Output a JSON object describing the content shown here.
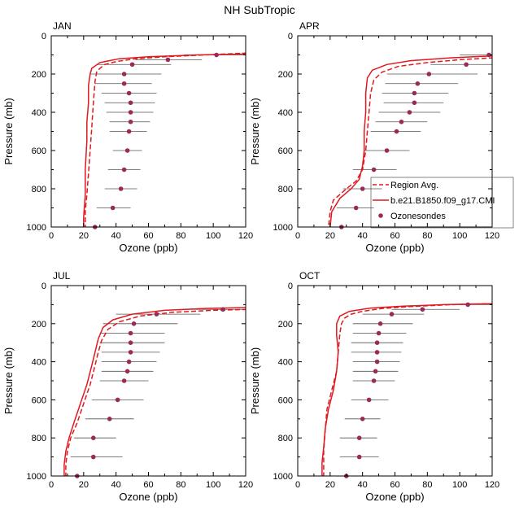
{
  "figure": {
    "title": "NH SubTropic"
  },
  "legend": {
    "region_avg": "Region Avg.",
    "model": "b.e21.B1850.f09_g17.CMI",
    "sondes": "Ozonesondes"
  },
  "colors": {
    "model": "#e0191f",
    "sondes": "#9a2b59",
    "errorbar": "#555555",
    "axis": "#000000"
  },
  "chart_data": [
    {
      "type": "line",
      "panel": "JAN",
      "xlabel": "Ozone (ppb)",
      "ylabel": "Pressure (mb)",
      "xlim": [
        0,
        120
      ],
      "ylim": [
        1000,
        0
      ],
      "xticks": [
        0,
        20,
        40,
        60,
        80,
        100,
        120
      ],
      "yticks": [
        0,
        200,
        400,
        600,
        800,
        1000
      ],
      "series": [
        {
          "name": "Region Avg.",
          "style": "dashed",
          "x": [
            121,
            95,
            70,
            52,
            40,
            33,
            30,
            28,
            27,
            26,
            25,
            24,
            23,
            22,
            21,
            21
          ],
          "y": [
            90,
            100,
            110,
            120,
            135,
            150,
            170,
            190,
            240,
            350,
            480,
            600,
            720,
            830,
            920,
            1000
          ]
        },
        {
          "name": "b.e21.B1850.f09_g17.CMI",
          "style": "solid",
          "x": [
            121,
            90,
            60,
            42,
            30,
            25,
            24,
            23,
            23,
            22,
            22,
            21,
            21,
            20,
            20
          ],
          "y": [
            95,
            100,
            110,
            120,
            140,
            170,
            200,
            260,
            350,
            450,
            550,
            700,
            830,
            950,
            1000
          ]
        }
      ],
      "sondes": {
        "name": "Ozonesondes",
        "points": [
          {
            "p": 100,
            "mean": 102,
            "lo": 82,
            "hi": 121
          },
          {
            "p": 125,
            "mean": 72,
            "lo": 52,
            "hi": 93
          },
          {
            "p": 150,
            "mean": 50,
            "lo": 28,
            "hi": 74
          },
          {
            "p": 200,
            "mean": 45,
            "lo": 24,
            "hi": 68
          },
          {
            "p": 250,
            "mean": 45,
            "lo": 27,
            "hi": 62
          },
          {
            "p": 300,
            "mean": 48,
            "lo": 31,
            "hi": 65
          },
          {
            "p": 350,
            "mean": 49,
            "lo": 33,
            "hi": 64
          },
          {
            "p": 400,
            "mean": 49,
            "lo": 34,
            "hi": 63
          },
          {
            "p": 450,
            "mean": 49,
            "lo": 36,
            "hi": 61
          },
          {
            "p": 500,
            "mean": 48,
            "lo": 36,
            "hi": 59
          },
          {
            "p": 600,
            "mean": 47,
            "lo": 38,
            "hi": 56
          },
          {
            "p": 700,
            "mean": 45,
            "lo": 35,
            "hi": 55
          },
          {
            "p": 800,
            "mean": 43,
            "lo": 33,
            "hi": 53
          },
          {
            "p": 900,
            "mean": 38,
            "lo": 28,
            "hi": 49
          },
          {
            "p": 1000,
            "mean": 27,
            "lo": 14,
            "hi": 41
          }
        ]
      }
    },
    {
      "type": "line",
      "panel": "APR",
      "xlabel": "Ozone (ppb)",
      "ylabel": "Pressure (mb)",
      "xlim": [
        0,
        120
      ],
      "ylim": [
        1000,
        0
      ],
      "xticks": [
        0,
        20,
        40,
        60,
        80,
        100,
        120
      ],
      "yticks": [
        0,
        200,
        400,
        600,
        800,
        1000
      ],
      "series": [
        {
          "name": "Region Avg.",
          "style": "dashed",
          "x": [
            121,
            100,
            80,
            62,
            52,
            47,
            45,
            44,
            43,
            42,
            40,
            36,
            30,
            22,
            20,
            19
          ],
          "y": [
            115,
            125,
            140,
            160,
            190,
            230,
            300,
            400,
            500,
            600,
            700,
            760,
            800,
            860,
            920,
            1000
          ]
        },
        {
          "name": "b.e21.B1850.f09_g17.CMI",
          "style": "solid",
          "x": [
            121,
            95,
            70,
            55,
            46,
            43,
            42,
            42,
            41,
            41,
            40,
            38,
            33,
            26,
            21,
            20
          ],
          "y": [
            105,
            115,
            130,
            150,
            180,
            220,
            300,
            400,
            500,
            600,
            680,
            750,
            800,
            850,
            920,
            1000
          ]
        }
      ],
      "sondes": {
        "name": "Ozonesondes",
        "points": [
          {
            "p": 100,
            "mean": 118,
            "lo": 100,
            "hi": 121
          },
          {
            "p": 150,
            "mean": 104,
            "lo": 82,
            "hi": 121
          },
          {
            "p": 200,
            "mean": 81,
            "lo": 55,
            "hi": 111
          },
          {
            "p": 250,
            "mean": 74,
            "lo": 54,
            "hi": 99
          },
          {
            "p": 300,
            "mean": 72,
            "lo": 52,
            "hi": 93
          },
          {
            "p": 350,
            "mean": 72,
            "lo": 53,
            "hi": 90
          },
          {
            "p": 400,
            "mean": 69,
            "lo": 50,
            "hi": 88
          },
          {
            "p": 450,
            "mean": 64,
            "lo": 48,
            "hi": 80
          },
          {
            "p": 500,
            "mean": 61,
            "lo": 45,
            "hi": 76
          },
          {
            "p": 600,
            "mean": 55,
            "lo": 41,
            "hi": 69
          },
          {
            "p": 700,
            "mean": 47,
            "lo": 34,
            "hi": 61
          },
          {
            "p": 800,
            "mean": 40,
            "lo": 28,
            "hi": 52
          },
          {
            "p": 900,
            "mean": 36,
            "lo": 24,
            "hi": 47
          },
          {
            "p": 1000,
            "mean": 27,
            "lo": 14,
            "hi": 42
          }
        ]
      }
    },
    {
      "type": "line",
      "panel": "JUL",
      "xlabel": "Ozone (ppb)",
      "ylabel": "Pressure (mb)",
      "xlim": [
        0,
        120
      ],
      "ylim": [
        1000,
        0
      ],
      "xticks": [
        0,
        20,
        40,
        60,
        80,
        100,
        120
      ],
      "yticks": [
        0,
        200,
        400,
        600,
        800,
        1000
      ],
      "series": [
        {
          "name": "Region Avg.",
          "style": "dashed",
          "x": [
            121,
            100,
            75,
            55,
            42,
            35,
            31,
            29,
            27,
            24,
            20,
            16,
            12,
            10,
            9,
            9
          ],
          "y": [
            125,
            130,
            140,
            160,
            190,
            230,
            290,
            350,
            420,
            520,
            620,
            720,
            800,
            870,
            940,
            1000
          ]
        },
        {
          "name": "b.e21.B1850.f09_g17.CMI",
          "style": "solid",
          "x": [
            121,
            95,
            70,
            50,
            38,
            32,
            29,
            27,
            25,
            22,
            18,
            14,
            11,
            9,
            8,
            8
          ],
          "y": [
            115,
            120,
            130,
            150,
            180,
            220,
            280,
            350,
            420,
            520,
            620,
            720,
            800,
            870,
            940,
            1000
          ]
        }
      ],
      "sondes": {
        "name": "Ozonesondes",
        "points": [
          {
            "p": 125,
            "mean": 106,
            "lo": 83,
            "hi": 121
          },
          {
            "p": 150,
            "mean": 65,
            "lo": 40,
            "hi": 92
          },
          {
            "p": 200,
            "mean": 51,
            "lo": 32,
            "hi": 78
          },
          {
            "p": 250,
            "mean": 49,
            "lo": 30,
            "hi": 70
          },
          {
            "p": 300,
            "mean": 49,
            "lo": 30,
            "hi": 70
          },
          {
            "p": 350,
            "mean": 49,
            "lo": 31,
            "hi": 67
          },
          {
            "p": 400,
            "mean": 48,
            "lo": 31,
            "hi": 65
          },
          {
            "p": 450,
            "mean": 47,
            "lo": 31,
            "hi": 63
          },
          {
            "p": 500,
            "mean": 45,
            "lo": 30,
            "hi": 60
          },
          {
            "p": 600,
            "mean": 41,
            "lo": 25,
            "hi": 57
          },
          {
            "p": 700,
            "mean": 36,
            "lo": 21,
            "hi": 51
          },
          {
            "p": 800,
            "mean": 26,
            "lo": 14,
            "hi": 40
          },
          {
            "p": 900,
            "mean": 26,
            "lo": 12,
            "hi": 44
          },
          {
            "p": 1000,
            "mean": 16,
            "lo": 6,
            "hi": 29
          }
        ]
      }
    },
    {
      "type": "line",
      "panel": "OCT",
      "xlabel": "Ozone (ppb)",
      "ylabel": "Pressure (mb)",
      "xlim": [
        0,
        120
      ],
      "ylim": [
        1000,
        0
      ],
      "xticks": [
        0,
        20,
        40,
        60,
        80,
        100,
        120
      ],
      "yticks": [
        0,
        200,
        400,
        600,
        800,
        1000
      ],
      "series": [
        {
          "name": "Region Avg.",
          "style": "dashed",
          "x": [
            121,
            95,
            70,
            52,
            40,
            33,
            29,
            27,
            26,
            25,
            24,
            21,
            18,
            17,
            16,
            16
          ],
          "y": [
            95,
            100,
            110,
            120,
            135,
            150,
            170,
            200,
            250,
            350,
            450,
            550,
            650,
            750,
            870,
            1000
          ]
        },
        {
          "name": "b.e21.B1850.f09_g17.CMI",
          "style": "solid",
          "x": [
            121,
            90,
            65,
            45,
            32,
            26,
            24,
            24,
            25,
            24,
            22,
            19,
            17,
            16,
            15,
            15
          ],
          "y": [
            95,
            100,
            108,
            118,
            135,
            160,
            200,
            260,
            350,
            450,
            550,
            650,
            750,
            850,
            930,
            1000
          ]
        }
      ],
      "sondes": {
        "name": "Ozonesondes",
        "points": [
          {
            "p": 100,
            "mean": 105,
            "lo": 88,
            "hi": 121
          },
          {
            "p": 125,
            "mean": 77,
            "lo": 58,
            "hi": 100
          },
          {
            "p": 150,
            "mean": 58,
            "lo": 40,
            "hi": 78
          },
          {
            "p": 200,
            "mean": 51,
            "lo": 34,
            "hi": 71
          },
          {
            "p": 250,
            "mean": 50,
            "lo": 34,
            "hi": 67
          },
          {
            "p": 300,
            "mean": 49,
            "lo": 33,
            "hi": 65
          },
          {
            "p": 350,
            "mean": 49,
            "lo": 33,
            "hi": 64
          },
          {
            "p": 400,
            "mean": 49,
            "lo": 34,
            "hi": 63
          },
          {
            "p": 450,
            "mean": 48,
            "lo": 34,
            "hi": 62
          },
          {
            "p": 500,
            "mean": 47,
            "lo": 34,
            "hi": 60
          },
          {
            "p": 600,
            "mean": 44,
            "lo": 33,
            "hi": 56
          },
          {
            "p": 700,
            "mean": 40,
            "lo": 29,
            "hi": 51
          },
          {
            "p": 800,
            "mean": 38,
            "lo": 26,
            "hi": 49
          },
          {
            "p": 900,
            "mean": 38,
            "lo": 26,
            "hi": 50
          },
          {
            "p": 1000,
            "mean": 30,
            "lo": 17,
            "hi": 45
          }
        ]
      }
    }
  ]
}
